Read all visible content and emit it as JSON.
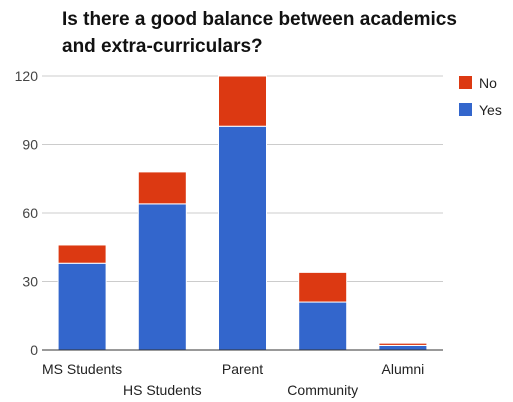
{
  "chart_data": {
    "type": "bar",
    "stacked": true,
    "title": "Is there a good balance between academics and extra-curriculars?",
    "xlabel": "",
    "ylabel": "",
    "categories": [
      "MS Students",
      "HS Students",
      "Parent",
      "Community",
      "Alumni"
    ],
    "series": [
      {
        "name": "Yes",
        "color": "#3366cc",
        "values": [
          38,
          64,
          98,
          21,
          2
        ]
      },
      {
        "name": "No",
        "color": "#dc3912",
        "values": [
          8,
          14,
          22,
          13,
          1
        ]
      }
    ],
    "ylim": [
      0,
      120
    ],
    "yticks": [
      0,
      30,
      60,
      90,
      120
    ],
    "grid": true,
    "legend_position": "right",
    "legend_order": [
      "No",
      "Yes"
    ]
  }
}
